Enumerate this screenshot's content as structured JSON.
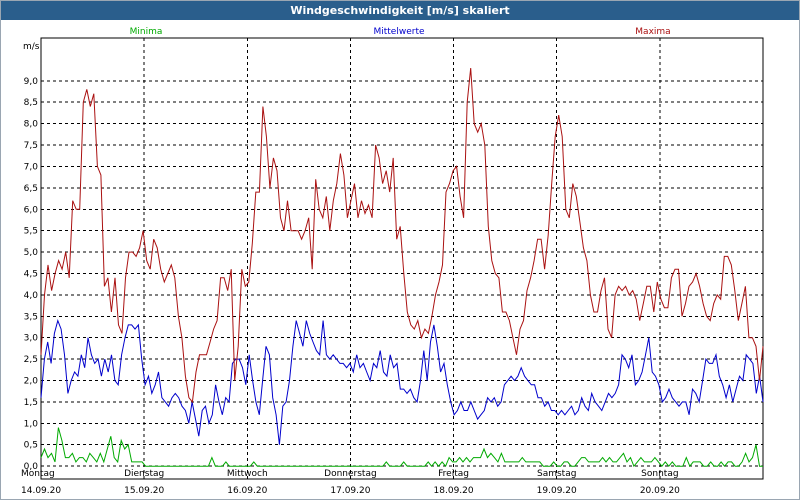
{
  "window": {
    "title": "Windgeschwindigkeit [m/s] skaliert"
  },
  "chart_data": {
    "type": "line",
    "title": "Windgeschwindigkeit [m/s] skaliert",
    "ylabel": "m/s",
    "ylim": [
      -0.3,
      10.0
    ],
    "yticks": [
      0.0,
      0.5,
      1.0,
      1.5,
      2.0,
      2.5,
      3.0,
      3.5,
      4.0,
      4.5,
      5.0,
      5.5,
      6.0,
      6.5,
      7.0,
      7.5,
      8.0,
      8.5,
      9.0
    ],
    "ytick_labels": [
      "0,0",
      "0,5",
      "1,0",
      "1,5",
      "2,0",
      "2,5",
      "3,0",
      "3,5",
      "4,0",
      "4,5",
      "5,0",
      "5,5",
      "6,0",
      "6,5",
      "7,0",
      "7,5",
      "8,0",
      "8,5",
      "9,0"
    ],
    "xlim": [
      0,
      7
    ],
    "grid": true,
    "legend_position": "top",
    "day_labels": [
      {
        "day": "Montag",
        "date": "14.09.20"
      },
      {
        "day": "Dienstag",
        "date": "15.09.20"
      },
      {
        "day": "Mittwoch",
        "date": "16.09.20"
      },
      {
        "day": "Donnerstag",
        "date": "17.09.20"
      },
      {
        "day": "Freitag",
        "date": "18.09.20"
      },
      {
        "day": "Samstag",
        "date": "19.09.20"
      },
      {
        "day": "Sonntag",
        "date": "20.09.20"
      }
    ],
    "series": [
      {
        "name": "Minima",
        "color": "#00aa00",
        "values": [
          0.2,
          0.4,
          0.2,
          0.3,
          0.1,
          0.9,
          0.6,
          0.2,
          0.2,
          0.3,
          0.1,
          0.2,
          0.2,
          0.1,
          0.3,
          0.2,
          0.1,
          0.3,
          0.1,
          0.4,
          0.7,
          0.2,
          0.1,
          0.6,
          0.4,
          0.5,
          0.1,
          0.1,
          0.1,
          0.1,
          0.0,
          0.0,
          0.0,
          0.0,
          0.0,
          0.0,
          0.0,
          0.0,
          0.0,
          0.0,
          0.0,
          0.0,
          0.0,
          0.0,
          0.0,
          0.0,
          0.0,
          0.0,
          0.0,
          0.2,
          0.0,
          0.0,
          0.0,
          0.1,
          0.0,
          0.0,
          0.0,
          0.0,
          0.0,
          0.0,
          0.0,
          0.1,
          0.0,
          0.0,
          0.0,
          0.0,
          0.0,
          0.0,
          0.0,
          0.0,
          0.0,
          0.0,
          0.0,
          0.0,
          0.0,
          0.0,
          0.0,
          0.0,
          0.0,
          0.0,
          0.0,
          0.0,
          0.0,
          0.0,
          0.0,
          0.0,
          0.0,
          0.0,
          0.0,
          0.0,
          0.0,
          0.0,
          0.0,
          0.0,
          0.0,
          0.0,
          0.0,
          0.0,
          0.0,
          0.1,
          0.0,
          0.0,
          0.0,
          0.0,
          0.1,
          0.0,
          0.0,
          0.0,
          0.0,
          0.0,
          0.0,
          0.1,
          0.0,
          0.1,
          0.0,
          0.1,
          0.0,
          0.2,
          0.1,
          0.1,
          0.2,
          0.1,
          0.2,
          0.1,
          0.2,
          0.2,
          0.2,
          0.4,
          0.2,
          0.3,
          0.2,
          0.1,
          0.3,
          0.1,
          0.1,
          0.1,
          0.1,
          0.1,
          0.2,
          0.1,
          0.1,
          0.1,
          0.1,
          0.1,
          0.0,
          0.0,
          0.0,
          0.1,
          0.0,
          0.0,
          0.1,
          0.1,
          0.0,
          0.0,
          0.1,
          0.2,
          0.2,
          0.1,
          0.1,
          0.1,
          0.1,
          0.2,
          0.1,
          0.2,
          0.1,
          0.1,
          0.2,
          0.3,
          0.1,
          0.2,
          0.0,
          0.1,
          0.2,
          0.1,
          0.1,
          0.1,
          0.2,
          0.1,
          0.0,
          0.1,
          0.0,
          0.1,
          0.0,
          0.0,
          0.0,
          0.2,
          0.0,
          0.1,
          0.1,
          0.1,
          0.0,
          0.0,
          0.1,
          0.0,
          0.0,
          0.1,
          0.0,
          0.1,
          0.1,
          0.0,
          0.0,
          0.1,
          0.3,
          0.1,
          0.2,
          0.5,
          0.0,
          0.0
        ]
      },
      {
        "name": "Mittelwerte",
        "color": "#0000cc",
        "values": [
          1.6,
          2.5,
          2.9,
          2.4,
          3.1,
          3.4,
          3.2,
          2.6,
          1.7,
          2.0,
          2.2,
          2.1,
          2.6,
          2.3,
          3.0,
          2.6,
          2.4,
          2.5,
          2.1,
          2.5,
          2.2,
          2.6,
          2.0,
          1.9,
          2.6,
          3.0,
          3.3,
          3.3,
          3.2,
          3.3,
          2.5,
          1.9,
          2.1,
          1.7,
          1.9,
          2.2,
          1.6,
          1.5,
          1.4,
          1.6,
          1.7,
          1.6,
          1.4,
          1.3,
          1.0,
          1.5,
          1.1,
          0.7,
          1.3,
          1.4,
          1.0,
          1.2,
          1.9,
          1.5,
          1.2,
          1.6,
          1.5,
          2.4,
          2.5,
          2.5,
          2.3,
          1.9,
          2.6,
          2.0,
          1.5,
          1.2,
          2.0,
          2.8,
          2.6,
          1.6,
          1.2,
          0.5,
          1.4,
          1.5,
          2.0,
          2.8,
          3.4,
          3.1,
          2.8,
          3.4,
          3.1,
          2.9,
          2.7,
          2.6,
          3.4,
          2.6,
          2.5,
          2.6,
          2.5,
          2.4,
          2.4,
          2.3,
          2.4,
          2.2,
          2.6,
          2.3,
          2.4,
          2.2,
          2.0,
          2.4,
          2.3,
          2.7,
          2.2,
          2.1,
          2.6,
          2.3,
          2.4,
          1.8,
          1.8,
          1.7,
          1.8,
          1.6,
          1.5,
          2.0,
          2.7,
          2.0,
          2.9,
          3.3,
          2.8,
          2.2,
          2.4,
          1.9,
          1.5,
          1.2,
          1.3,
          1.5,
          1.3,
          1.3,
          1.5,
          1.3,
          1.1,
          1.2,
          1.3,
          1.6,
          1.5,
          1.6,
          1.4,
          1.5,
          1.9,
          2.0,
          2.1,
          2.0,
          2.1,
          2.3,
          2.1,
          2.0,
          1.9,
          1.9,
          1.6,
          1.6,
          1.4,
          1.5,
          1.3,
          1.3,
          1.2,
          1.3,
          1.2,
          1.3,
          1.4,
          1.2,
          1.3,
          1.6,
          1.4,
          1.3,
          1.7,
          1.5,
          1.4,
          1.3,
          1.5,
          1.7,
          1.6,
          1.7,
          1.9,
          2.6,
          2.5,
          2.3,
          2.6,
          1.9,
          2.0,
          2.2,
          2.6,
          3.0,
          2.2,
          2.1,
          1.9,
          1.5,
          1.6,
          1.8,
          1.6,
          1.5,
          1.4,
          1.5,
          1.5,
          1.2,
          1.8,
          1.7,
          1.5,
          2.0,
          2.5,
          2.4,
          2.4,
          2.6,
          2.1,
          1.9,
          1.6,
          1.9,
          1.5,
          1.8,
          2.1,
          2.0,
          2.6,
          2.5,
          2.4,
          1.7,
          2.1,
          1.5
        ]
      },
      {
        "name": "Maxima",
        "color": "#aa1111",
        "values": [
          2.6,
          4.0,
          4.7,
          4.1,
          4.5,
          4.8,
          4.6,
          5.0,
          4.4,
          6.2,
          6.0,
          6.0,
          8.5,
          8.8,
          8.4,
          8.7,
          7.0,
          6.8,
          4.2,
          4.4,
          3.6,
          4.4,
          3.3,
          3.1,
          4.4,
          5.0,
          5.0,
          4.9,
          5.1,
          5.5,
          4.8,
          4.6,
          5.3,
          5.1,
          4.6,
          4.3,
          4.5,
          4.7,
          4.4,
          3.5,
          3.0,
          2.1,
          1.6,
          1.5,
          2.2,
          2.6,
          2.6,
          2.6,
          2.9,
          3.2,
          3.4,
          4.4,
          4.4,
          4.1,
          4.6,
          2.0,
          2.8,
          4.6,
          4.2,
          4.3,
          5.2,
          6.4,
          6.4,
          8.4,
          7.7,
          6.5,
          7.2,
          6.9,
          5.8,
          5.5,
          6.2,
          5.5,
          5.5,
          5.5,
          5.3,
          5.5,
          5.8,
          4.6,
          6.7,
          6.0,
          5.8,
          6.3,
          5.5,
          6.2,
          6.6,
          7.3,
          6.8,
          5.8,
          6.2,
          6.6,
          5.8,
          6.2,
          5.9,
          6.1,
          5.8,
          7.5,
          7.2,
          6.6,
          6.9,
          6.4,
          7.2,
          5.3,
          5.6,
          4.5,
          3.6,
          3.3,
          3.2,
          3.4,
          3.0,
          3.2,
          3.1,
          3.5,
          4.0,
          4.3,
          4.7,
          6.4,
          6.6,
          6.9,
          7.0,
          6.3,
          5.8,
          8.5,
          9.3,
          8.0,
          7.8,
          8.0,
          7.5,
          5.6,
          4.8,
          4.5,
          4.4,
          3.6,
          3.6,
          3.4,
          3.0,
          2.6,
          3.2,
          3.4,
          4.1,
          4.4,
          4.8,
          5.3,
          5.3,
          4.6,
          5.4,
          6.6,
          7.7,
          8.2,
          7.7,
          6.0,
          5.8,
          6.6,
          6.3,
          5.7,
          5.1,
          4.8,
          4.0,
          3.6,
          3.6,
          4.1,
          4.4,
          3.2,
          3.0,
          4.0,
          4.2,
          4.1,
          4.2,
          4.0,
          4.1,
          3.9,
          3.4,
          3.8,
          4.2,
          4.2,
          3.6,
          4.3,
          3.9,
          3.7,
          3.7,
          4.4,
          4.6,
          4.6,
          3.5,
          3.8,
          4.2,
          4.3,
          4.5,
          4.2,
          3.8,
          3.5,
          3.4,
          3.8,
          4.0,
          3.9,
          4.9,
          4.9,
          4.7,
          4.1,
          3.4,
          3.8,
          4.2,
          3.0,
          3.0,
          2.8,
          2.0,
          2.8
        ]
      }
    ]
  }
}
